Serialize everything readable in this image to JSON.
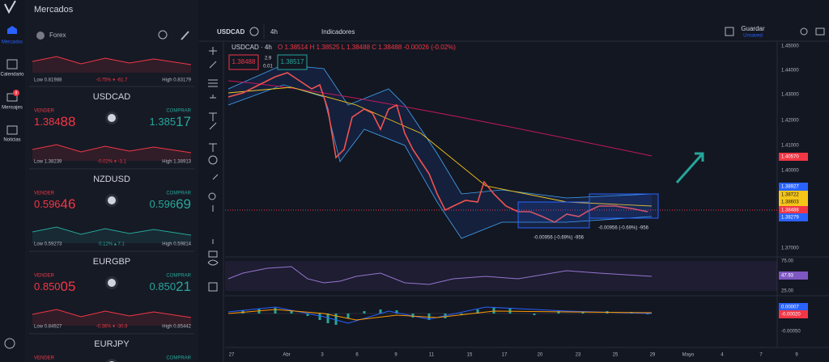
{
  "sidebar": {
    "items": [
      "Mercados",
      "Calendario",
      "Mensajes",
      "Noticias"
    ],
    "badge": "8"
  },
  "panel": {
    "title": "Mercados",
    "group": "Forex",
    "pairs": [
      {
        "low": "Low 0.81988",
        "change": "-0.75% ▾ -61.7",
        "high": "High 0.83179",
        "color": "#f23645"
      },
      {
        "symbol": "USDCAD",
        "sell_label": "VENDER",
        "sell": "1.38488",
        "buy_label": "COMPRAR",
        "buy": "1.38517",
        "low": "Low 1.38239",
        "change": "-0.02% ▾ -3.1",
        "high": "High 1.38913",
        "color": "#f23645"
      },
      {
        "symbol": "NZDUSD",
        "sell_label": "VENDER",
        "sell": "0.59646",
        "buy_label": "COMPRAR",
        "buy": "0.59669",
        "low": "Low 0.59273",
        "change": "0.12% ▴ 7.1",
        "high": "High 0.59814",
        "color": "#26a69a"
      },
      {
        "symbol": "EURGBP",
        "sell_label": "VENDER",
        "sell": "0.85005",
        "buy_label": "COMPRAR",
        "buy": "0.85021",
        "low": "Low 0.84927",
        "change": "-0.36% ▾ -30.9",
        "high": "High 0.85442",
        "color": "#f23645"
      },
      {
        "symbol": "EURJPY",
        "sell_label": "VENDER",
        "buy_label": "COMPRAR",
        "color": "#f23645"
      }
    ]
  },
  "toolbar": {
    "symbol": "USDCAD",
    "interval": "4h",
    "indicators": "Indicadores",
    "save": "Guardar",
    "save_status": "Unsaved"
  },
  "legend": {
    "title": "USDCAD · 4h",
    "ohlc": "O 1.38514 H 1.38525 L 1.38488 C 1.38488 -0.00026 (-0.02%)",
    "sell": "1.38488",
    "spread": "2.9",
    "qty": "0.01",
    "buy": "1.38517"
  },
  "price_axis": [
    {
      "label": "1.45000"
    },
    {
      "label": "1.44000"
    },
    {
      "label": "1.43000"
    },
    {
      "label": "1.42000"
    },
    {
      "label": "1.41000"
    },
    {
      "label": "1.40570",
      "color": "#f23645"
    },
    {
      "label": "1.40000"
    },
    {
      "label": "1.38927",
      "color": "#2962ff"
    },
    {
      "label": "1.38722",
      "color": "#f5c518"
    },
    {
      "label": "1.38603",
      "color": "#f5c518"
    },
    {
      "label": "1.38488",
      "color": "#f23645"
    },
    {
      "label": "1.38279",
      "color": "#2962ff"
    },
    {
      "label": "1.37000"
    }
  ],
  "rsi_axis": [
    {
      "label": "75.00"
    },
    {
      "label": "47.93",
      "color": "#7e57c2"
    },
    {
      "label": "25.00"
    }
  ],
  "macd_axis": [
    {
      "label": "0.00007",
      "color": "#2962ff"
    },
    {
      "label": "-0.00020",
      "color": "#f23645"
    },
    {
      "label": "-0.00050"
    }
  ],
  "time_axis": [
    "27",
    "Abr",
    "3",
    "6",
    "9",
    "11",
    "15",
    "17",
    "20",
    "23",
    "25",
    "29",
    "Mayo",
    "4",
    "7",
    "9"
  ],
  "measures": [
    "-0.00956 (-0.69%) -956",
    "-0.00956 (-0.69%) -956"
  ]
}
